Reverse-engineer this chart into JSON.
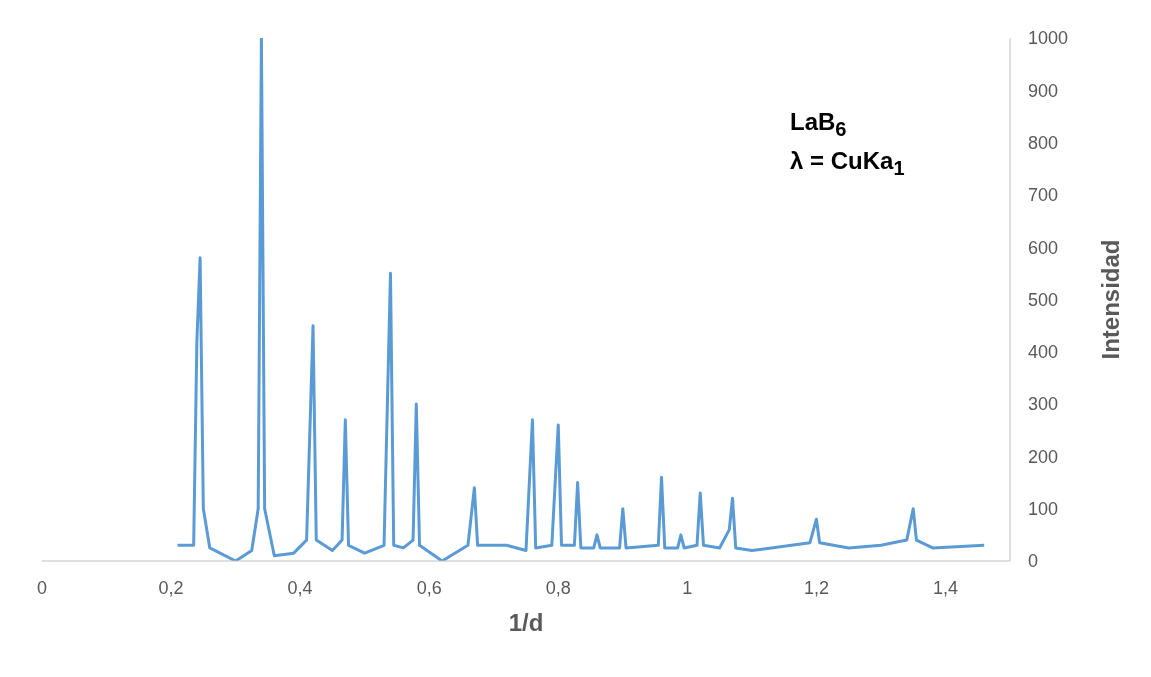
{
  "chart_data": {
    "type": "line",
    "xlabel": "1/d",
    "ylabel": "Intensidad",
    "annotations": [
      "LaB$_{6}$",
      "λ = CuKa$_{1}$"
    ],
    "xlim": [
      0,
      1.5
    ],
    "xticks": [
      0,
      {
        "value": 0.2,
        "label": "0,2"
      },
      {
        "value": 0.4,
        "label": "0,4"
      },
      {
        "value": 0.6,
        "label": "0,6"
      },
      {
        "value": 0.8,
        "label": "0,8"
      },
      1,
      {
        "value": 1.2,
        "label": "1,2"
      },
      {
        "value": 1.4,
        "label": "1,4"
      }
    ],
    "ylim": [
      0,
      1000
    ],
    "yticks": [
      0,
      100,
      200,
      300,
      400,
      500,
      600,
      700,
      800,
      900,
      1000
    ],
    "grid": false,
    "legend": false,
    "marker": "none",
    "line_style": "solid",
    "series": [
      {
        "color": "#5b9bd5",
        "x": [
          0.21,
          0.235,
          0.24,
          0.245,
          0.25,
          0.26,
          0.3,
          0.325,
          0.335,
          0.34,
          0.345,
          0.36,
          0.39,
          0.41,
          0.42,
          0.425,
          0.45,
          0.465,
          0.47,
          0.475,
          0.5,
          0.53,
          0.54,
          0.545,
          0.56,
          0.575,
          0.58,
          0.585,
          0.62,
          0.66,
          0.67,
          0.675,
          0.72,
          0.75,
          0.76,
          0.765,
          0.79,
          0.8,
          0.805,
          0.825,
          0.83,
          0.835,
          0.855,
          0.86,
          0.865,
          0.895,
          0.9,
          0.905,
          0.955,
          0.96,
          0.965,
          0.985,
          0.99,
          0.995,
          1.015,
          1.02,
          1.025,
          1.05,
          1.065,
          1.07,
          1.075,
          1.1,
          1.19,
          1.2,
          1.205,
          1.25,
          1.3,
          1.34,
          1.35,
          1.355,
          1.38,
          1.46
        ],
        "values": [
          30,
          30,
          420,
          580,
          100,
          25,
          0,
          20,
          100,
          1000,
          100,
          10,
          15,
          40,
          450,
          40,
          20,
          40,
          270,
          30,
          15,
          30,
          550,
          30,
          25,
          40,
          300,
          30,
          0,
          30,
          140,
          30,
          30,
          20,
          270,
          25,
          30,
          260,
          30,
          30,
          150,
          25,
          25,
          50,
          25,
          25,
          100,
          25,
          30,
          160,
          25,
          25,
          50,
          25,
          30,
          130,
          30,
          25,
          60,
          120,
          25,
          20,
          35,
          80,
          35,
          25,
          30,
          40,
          100,
          40,
          25,
          30
        ]
      }
    ]
  }
}
